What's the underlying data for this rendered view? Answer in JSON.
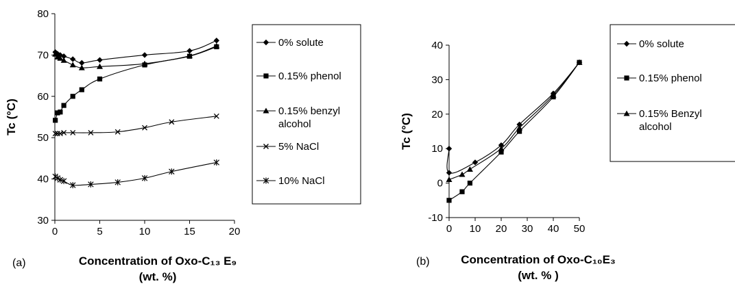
{
  "chart_data": [
    {
      "type": "line",
      "panel_label": "(a)",
      "xlabel": "Concentration of Oxo-C₁₃ E₉",
      "xlabel_line2": "(wt. %)",
      "ylabel": "Tc (°C)",
      "xlim": [
        0,
        20
      ],
      "ylim": [
        30,
        80
      ],
      "xticks": [
        0,
        5,
        10,
        15,
        20
      ],
      "yticks": [
        30,
        40,
        50,
        60,
        70,
        80
      ],
      "series": [
        {
          "name": "0% solute",
          "marker": "diamond",
          "x": [
            0.05,
            0.3,
            0.6,
            1,
            2,
            3,
            5,
            10,
            15,
            18
          ],
          "y": [
            70.7,
            70.3,
            70.0,
            69.7,
            69.0,
            68.1,
            68.8,
            70.0,
            71.0,
            73.5
          ]
        },
        {
          "name": "0.15% phenol",
          "marker": "square",
          "x": [
            0.05,
            0.3,
            0.6,
            1,
            2,
            3,
            5,
            10,
            15,
            18
          ],
          "y": [
            54.2,
            56.0,
            56.2,
            57.8,
            60.0,
            61.6,
            64.2,
            67.6,
            69.7,
            72.0
          ]
        },
        {
          "name": "0.15% benzyl alcohol",
          "name_lines": [
            "0.15% benzyl",
            "alcohol"
          ],
          "marker": "triangle",
          "x": [
            0.05,
            0.3,
            0.6,
            1,
            2,
            3,
            5,
            10,
            15,
            18
          ],
          "y": [
            70.2,
            69.5,
            69.2,
            68.7,
            67.6,
            66.9,
            67.2,
            67.9,
            69.8,
            72.2
          ]
        },
        {
          "name": "5% NaCl",
          "marker": "x",
          "x": [
            0.05,
            0.3,
            0.6,
            1,
            2,
            4,
            7,
            10,
            13,
            18
          ],
          "y": [
            51.0,
            51.0,
            51.0,
            51.2,
            51.2,
            51.2,
            51.4,
            52.4,
            53.8,
            55.2
          ]
        },
        {
          "name": "10% NaCl",
          "marker": "star",
          "x": [
            0.05,
            0.3,
            0.6,
            1,
            2,
            4,
            7,
            10,
            13,
            18
          ],
          "y": [
            40.6,
            40.2,
            39.8,
            39.5,
            38.5,
            38.7,
            39.2,
            40.2,
            41.8,
            44.0
          ]
        }
      ]
    },
    {
      "type": "line",
      "panel_label": "(b)",
      "xlabel": "Concentration of Oxo-C₁₀E₃",
      "xlabel_line2": "(wt. % )",
      "ylabel": "Tc (°C)",
      "xlim": [
        0,
        50
      ],
      "ylim": [
        -10,
        40
      ],
      "xticks": [
        0,
        10,
        20,
        30,
        40,
        50
      ],
      "yticks": [
        -10,
        0,
        10,
        20,
        30,
        40
      ],
      "series": [
        {
          "name": "0% solute",
          "marker": "diamond",
          "x": [
            0,
            0,
            10,
            20,
            27,
            40,
            50
          ],
          "y": [
            10,
            3,
            6,
            11,
            17,
            26,
            35
          ]
        },
        {
          "name": "0.15% phenol",
          "marker": "square",
          "x": [
            0,
            5,
            8,
            20,
            27,
            40,
            50
          ],
          "y": [
            -5,
            -2.5,
            0,
            9,
            15,
            25,
            35
          ]
        },
        {
          "name": "0.15%  Benzyl alcohol",
          "name_lines": [
            "0.15%  Benzyl",
            "alcohol"
          ],
          "marker": "triangle",
          "x": [
            0,
            5,
            8,
            20,
            27,
            40,
            50
          ],
          "y": [
            1,
            2.5,
            4,
            10,
            16,
            25.5,
            35
          ]
        }
      ]
    }
  ]
}
